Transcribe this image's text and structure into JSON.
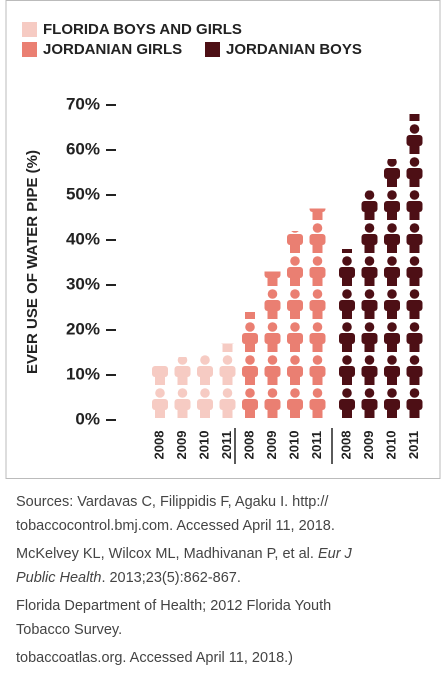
{
  "chart_data": {
    "type": "pictogram",
    "y_label": "EVER USE OF WATER PIPE (%)",
    "categories": [
      "2008",
      "2009",
      "2010",
      "2011"
    ],
    "series": [
      {
        "name": "FLORIDA BOYS AND GIRLS",
        "color": "#f6cbc3",
        "values": [
          12,
          14,
          15,
          17
        ]
      },
      {
        "name": "JORDANIAN GIRLS",
        "color": "#ea7f72",
        "values": [
          24,
          33,
          42,
          47
        ]
      },
      {
        "name": "JORDANIAN BOYS",
        "color": "#4d0f15",
        "values": [
          38,
          51,
          58,
          68
        ]
      }
    ],
    "ylim": [
      0,
      70
    ],
    "yticks": [
      {
        "value": 0,
        "label": "0%"
      },
      {
        "value": 10,
        "label": "10%"
      },
      {
        "value": 20,
        "label": "20%"
      },
      {
        "value": 30,
        "label": "30%"
      },
      {
        "value": 40,
        "label": "40%"
      },
      {
        "value": 50,
        "label": "50%"
      },
      {
        "value": 60,
        "label": "60%"
      },
      {
        "value": 70,
        "label": "70%"
      }
    ]
  },
  "sources": [
    [
      {
        "text": "Sources: Vardavas C, Filippidis F, Agaku I. http://"
      }
    ],
    [
      {
        "text": "tobaccocontrol.bmj.com. Accessed April 11, 2018."
      }
    ],
    [
      {
        "text": "McKelvey KL, Wilcox ML, Madhivanan P, et al. "
      },
      {
        "text": "Eur J",
        "italic": true
      }
    ],
    [
      {
        "text": "Public Health",
        "italic": true
      },
      {
        "text": ". 2013;23(5):862-867."
      }
    ],
    [
      {
        "text": "Florida Department of Health; 2012 Florida Youth"
      }
    ],
    [
      {
        "text": "Tobacco Survey."
      }
    ],
    [
      {
        "text": "tobaccoatlas.org. Accessed April 11, 2018.)"
      }
    ]
  ]
}
